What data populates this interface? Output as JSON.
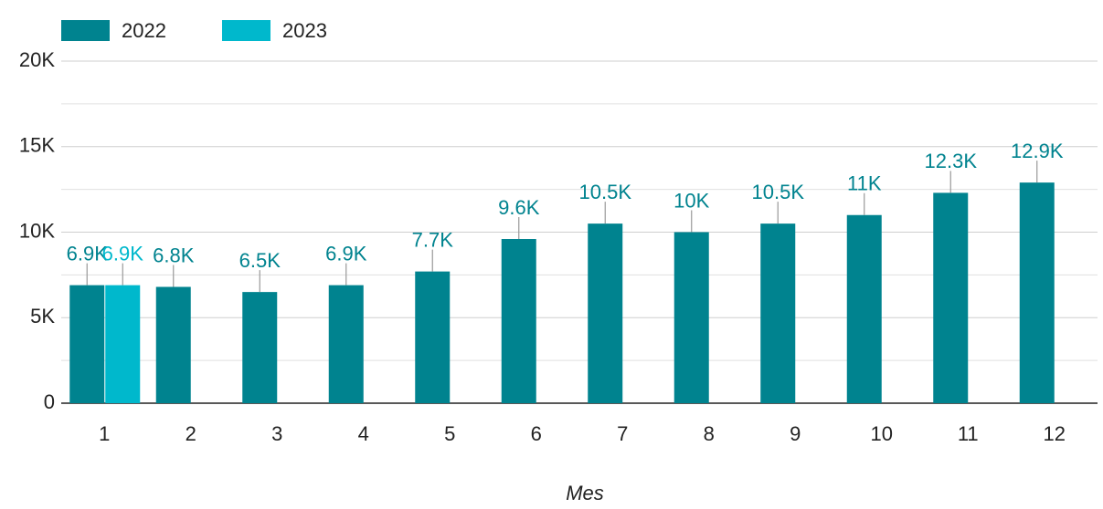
{
  "chart_data": {
    "type": "bar",
    "categories": [
      "1",
      "2",
      "3",
      "4",
      "5",
      "6",
      "7",
      "8",
      "9",
      "10",
      "11",
      "12"
    ],
    "series": [
      {
        "name": "2022",
        "color": "#00838f",
        "values": [
          6900,
          6800,
          6500,
          6900,
          7700,
          9600,
          10500,
          10000,
          10500,
          11000,
          12300,
          12900
        ],
        "value_labels": [
          "6.9K",
          "6.8K",
          "6.5K",
          "6.9K",
          "7.7K",
          "9.6K",
          "10.5K",
          "10K",
          "10.5K",
          "11K",
          "12.3K",
          "12.9K"
        ]
      },
      {
        "name": "2023",
        "color": "#00b8cc",
        "values": [
          6900,
          null,
          null,
          null,
          null,
          null,
          null,
          null,
          null,
          null,
          null,
          null
        ],
        "value_labels": [
          "6.9K",
          null,
          null,
          null,
          null,
          null,
          null,
          null,
          null,
          null,
          null,
          null
        ]
      }
    ],
    "x_label": "Mes",
    "ylim": [
      0,
      20000
    ],
    "yticks": [
      0,
      {
        "value": 5000,
        "label": "5K"
      },
      {
        "value": 10000,
        "label": "10K"
      },
      {
        "value": 15000,
        "label": "15K"
      },
      {
        "value": 20000,
        "label": "20K"
      }
    ],
    "minor_yticks": [
      2500,
      7500,
      12500,
      17500
    ],
    "grid": true
  }
}
